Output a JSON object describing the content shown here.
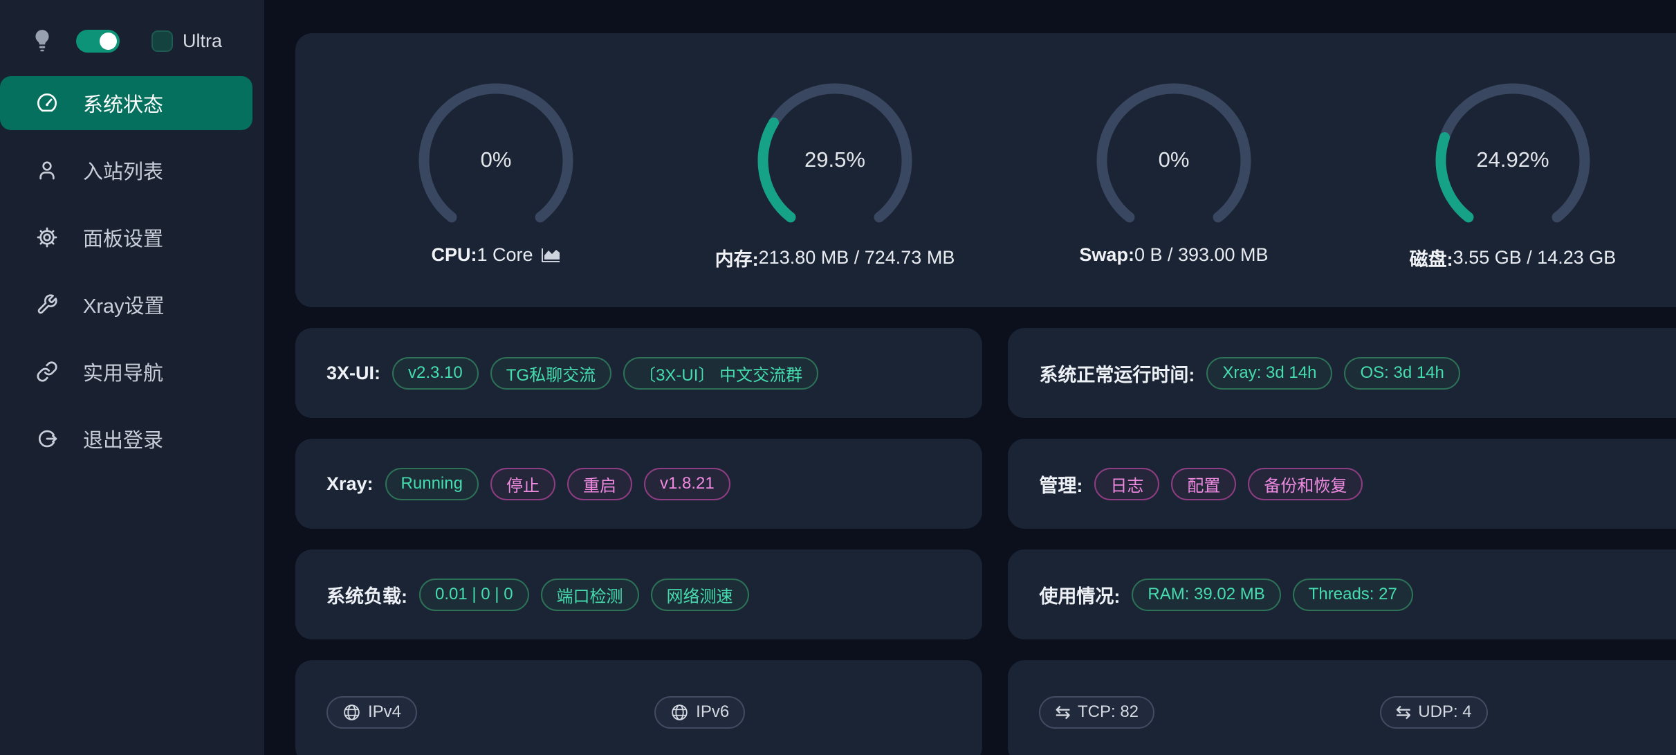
{
  "theme": {
    "page_bg": "#0b101c",
    "sidebar_bg": "#192130",
    "card_bg": "#1b2434",
    "accent_teal": "#04705d",
    "toggle_green": "#0d9478",
    "gauge_track": "#3a4760",
    "gauge_green": "#16a286",
    "pill_green_text": "#45dcae",
    "pill_pink_text": "#ee8ae0"
  },
  "sidebar": {
    "theme_toggle_on": true,
    "ultra_label": "Ultra",
    "items": [
      {
        "label": "系统状态",
        "icon": "dashboard-icon",
        "selected": true
      },
      {
        "label": "入站列表",
        "icon": "user-icon",
        "selected": false
      },
      {
        "label": "面板设置",
        "icon": "gear-icon",
        "selected": false
      },
      {
        "label": "Xray设置",
        "icon": "wrench-icon",
        "selected": false
      },
      {
        "label": "实用导航",
        "icon": "link-icon",
        "selected": false
      },
      {
        "label": "退出登录",
        "icon": "logout-icon",
        "selected": false
      }
    ]
  },
  "gauges": [
    {
      "percent": "0%",
      "value": 0,
      "label_bold": "CPU:",
      "label_rest": " 1 Core"
    },
    {
      "percent": "29.5%",
      "value": 29.5,
      "label_bold": "内存:",
      "label_rest": " 213.80 MB / 724.73 MB"
    },
    {
      "percent": "0%",
      "value": 0,
      "label_bold": "Swap:",
      "label_rest": " 0 B / 393.00 MB"
    },
    {
      "percent": "24.92%",
      "value": 24.92,
      "label_bold": "磁盘:",
      "label_rest": " 3.55 GB / 14.23 GB"
    }
  ],
  "cards": {
    "xui": {
      "label": "3X-UI:",
      "version": "v2.3.10",
      "tg_private": "TG私聊交流",
      "tg_group": "〔3X-UI〕 中文交流群"
    },
    "uptime": {
      "label": "系统正常运行时间:",
      "xray": "Xray: 3d 14h",
      "os": "OS: 3d 14h"
    },
    "xray": {
      "label": "Xray:",
      "status": "Running",
      "stop": "停止",
      "restart": "重启",
      "version": "v1.8.21"
    },
    "admin": {
      "label": "管理:",
      "log": "日志",
      "config": "配置",
      "backup": "备份和恢复"
    },
    "load": {
      "label": "系统负载:",
      "values": "0.01 | 0 | 0",
      "port_check": "端口检测",
      "speed_test": "网络测速"
    },
    "usage": {
      "label": "使用情况:",
      "ram": "RAM: 39.02 MB",
      "threads": "Threads: 27"
    },
    "ip": {
      "ipv4": "IPv4",
      "ipv6": "IPv6"
    },
    "conn": {
      "tcp": "TCP: 82",
      "udp": "UDP: 4"
    }
  }
}
